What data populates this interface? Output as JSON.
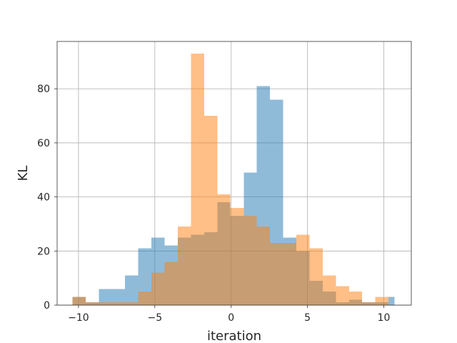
{
  "chart_data": {
    "type": "bar",
    "title": "",
    "xlabel": "iteration",
    "ylabel": "KL",
    "xlim": [
      -11.4,
      11.8
    ],
    "ylim": [
      0,
      97.5
    ],
    "xticks": [
      -10,
      -5,
      0,
      5,
      10
    ],
    "yticks": [
      0,
      20,
      40,
      60,
      80
    ],
    "grid": true,
    "alpha": 0.5,
    "series": [
      {
        "color": "#1f77b4",
        "bins": [
          {
            "x0": -10.4,
            "x1": -9.54,
            "y": 3
          },
          {
            "x0": -9.54,
            "x1": -8.67,
            "y": 1
          },
          {
            "x0": -8.67,
            "x1": -7.81,
            "y": 6
          },
          {
            "x0": -7.81,
            "x1": -6.95,
            "y": 6
          },
          {
            "x0": -6.95,
            "x1": -6.09,
            "y": 11
          },
          {
            "x0": -6.09,
            "x1": -5.22,
            "y": 21
          },
          {
            "x0": -5.22,
            "x1": -4.36,
            "y": 25
          },
          {
            "x0": -4.36,
            "x1": -3.5,
            "y": 22
          },
          {
            "x0": -3.5,
            "x1": -2.63,
            "y": 25
          },
          {
            "x0": -2.63,
            "x1": -1.77,
            "y": 26
          },
          {
            "x0": -1.77,
            "x1": -0.91,
            "y": 27
          },
          {
            "x0": -0.91,
            "x1": -0.05,
            "y": 38
          },
          {
            "x0": -0.05,
            "x1": 0.82,
            "y": 33
          },
          {
            "x0": 0.82,
            "x1": 1.68,
            "y": 49
          },
          {
            "x0": 1.68,
            "x1": 2.54,
            "y": 81
          },
          {
            "x0": 2.54,
            "x1": 3.4,
            "y": 76
          },
          {
            "x0": 3.4,
            "x1": 4.27,
            "y": 25
          },
          {
            "x0": 4.27,
            "x1": 5.13,
            "y": 20
          },
          {
            "x0": 5.13,
            "x1": 5.99,
            "y": 9
          },
          {
            "x0": 5.99,
            "x1": 6.86,
            "y": 5
          },
          {
            "x0": 6.86,
            "x1": 7.72,
            "y": 1
          },
          {
            "x0": 7.72,
            "x1": 8.58,
            "y": 2
          },
          {
            "x0": 8.58,
            "x1": 9.44,
            "y": 1
          },
          {
            "x0": 9.44,
            "x1": 10.31,
            "y": 1
          },
          {
            "x0": 10.31,
            "x1": 10.7,
            "y": 3
          }
        ]
      },
      {
        "color": "#ff7f0e",
        "bins": [
          {
            "x0": -10.4,
            "x1": -9.54,
            "y": 3
          },
          {
            "x0": -9.54,
            "x1": -8.67,
            "y": 1
          },
          {
            "x0": -8.67,
            "x1": -7.81,
            "y": 1
          },
          {
            "x0": -7.81,
            "x1": -6.95,
            "y": 1
          },
          {
            "x0": -6.95,
            "x1": -6.09,
            "y": 1
          },
          {
            "x0": -6.09,
            "x1": -5.22,
            "y": 5
          },
          {
            "x0": -5.22,
            "x1": -4.36,
            "y": 12
          },
          {
            "x0": -4.36,
            "x1": -3.5,
            "y": 16
          },
          {
            "x0": -3.5,
            "x1": -2.63,
            "y": 29
          },
          {
            "x0": -2.63,
            "x1": -1.77,
            "y": 93
          },
          {
            "x0": -1.77,
            "x1": -0.91,
            "y": 70
          },
          {
            "x0": -0.91,
            "x1": -0.05,
            "y": 41
          },
          {
            "x0": -0.05,
            "x1": 0.82,
            "y": 36
          },
          {
            "x0": 0.82,
            "x1": 1.68,
            "y": 33
          },
          {
            "x0": 1.68,
            "x1": 2.54,
            "y": 29
          },
          {
            "x0": 2.54,
            "x1": 3.4,
            "y": 23
          },
          {
            "x0": 3.4,
            "x1": 4.27,
            "y": 23
          },
          {
            "x0": 4.27,
            "x1": 5.13,
            "y": 26
          },
          {
            "x0": 5.13,
            "x1": 5.99,
            "y": 21
          },
          {
            "x0": 5.99,
            "x1": 6.86,
            "y": 11
          },
          {
            "x0": 6.86,
            "x1": 7.72,
            "y": 7
          },
          {
            "x0": 7.72,
            "x1": 8.58,
            "y": 5
          },
          {
            "x0": 8.58,
            "x1": 9.44,
            "y": 1
          },
          {
            "x0": 9.44,
            "x1": 10.31,
            "y": 3
          }
        ]
      }
    ]
  }
}
